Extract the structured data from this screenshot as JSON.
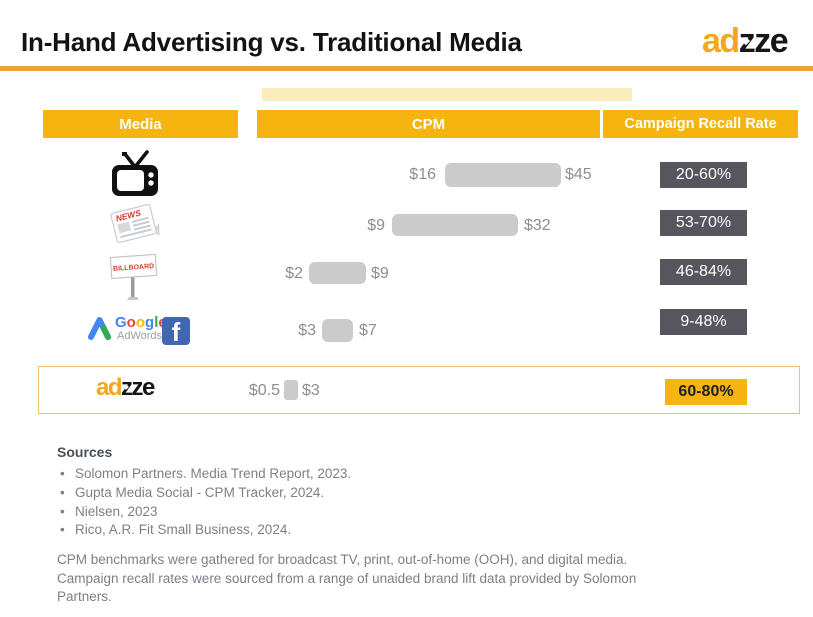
{
  "header": {
    "title": "In-Hand Advertising vs. Traditional Media",
    "brand": {
      "p1": "ad",
      "p2": "z",
      "p3": "ze"
    }
  },
  "columns": {
    "media": "Media",
    "cpm": "CPM",
    "recall": "Campaign Recall Rate"
  },
  "table": {
    "rows": [
      {
        "media": "TV",
        "cpm_min": "$16",
        "cpm_max": "$45",
        "recall": "20-60%"
      },
      {
        "media": "Newspaper",
        "cpm_min": "$9",
        "cpm_max": "$32",
        "recall": "53-70%"
      },
      {
        "media": "Billboard",
        "cpm_min": "$2",
        "cpm_max": "$9",
        "recall": "46-84%"
      },
      {
        "media": "Google AdWords / Facebook",
        "cpm_min": "$3",
        "cpm_max": "$7",
        "recall": "9-48%"
      },
      {
        "media": "Adzze In-Hand Advertising",
        "cpm_min": "$0.5",
        "cpm_max": "$3",
        "recall": "60-80%",
        "highlight": true
      }
    ]
  },
  "icons": {
    "news_label": "NEWS",
    "billboard_label": "BILLBOARD",
    "facebook_letter": "f"
  },
  "google_logo": {
    "letters": [
      {
        "ch": "G",
        "color": "#4285F4"
      },
      {
        "ch": "o",
        "color": "#EA4335"
      },
      {
        "ch": "o",
        "color": "#FBBC05"
      },
      {
        "ch": "g",
        "color": "#4285F4"
      },
      {
        "ch": "l",
        "color": "#34A853"
      },
      {
        "ch": "e",
        "color": "#EA4335"
      }
    ],
    "sub": "AdWords"
  },
  "sources": {
    "heading": "Sources",
    "items": [
      "Solomon Partners. Media Trend Report, 2023.",
      "Gupta Media Social - CPM Tracker, 2024.",
      "Nielsen, 2023",
      "Rico, A.R. Fit Small Business, 2024."
    ]
  },
  "footnote": "CPM benchmarks were gathered for broadcast TV, print, out-of-home (OOH), and digital media. Campaign recall rates were sourced from a range of unaided brand lift data provided by Solomon Partners.",
  "colors": {
    "accent_yellow": "#F5B40F",
    "divider_orange": "#EBA63A",
    "badge_gray": "#57565F",
    "bar_gray": "#CBCBCB",
    "brand_orange": "#F2A71D",
    "facebook_blue": "#4267B2"
  },
  "chart_data": {
    "type": "bar",
    "title": "In-Hand Advertising vs. Traditional Media",
    "categories": [
      "TV",
      "Newspaper",
      "Billboard",
      "Google AdWords / Facebook",
      "Adzze (In-Hand Advertising)"
    ],
    "series": [
      {
        "name": "CPM min ($)",
        "values": [
          16,
          9,
          2,
          3,
          0.5
        ]
      },
      {
        "name": "CPM max ($)",
        "values": [
          45,
          32,
          9,
          7,
          3
        ]
      },
      {
        "name": "Campaign recall rate min (%)",
        "values": [
          20,
          53,
          46,
          9,
          60
        ]
      },
      {
        "name": "Campaign recall rate max (%)",
        "values": [
          60,
          70,
          84,
          48,
          80
        ]
      }
    ],
    "xlabel": "Media",
    "ylabel": "CPM ($, range bars)",
    "notes": "Horizontal floating range bars per media type; recall rates shown as text badges."
  }
}
